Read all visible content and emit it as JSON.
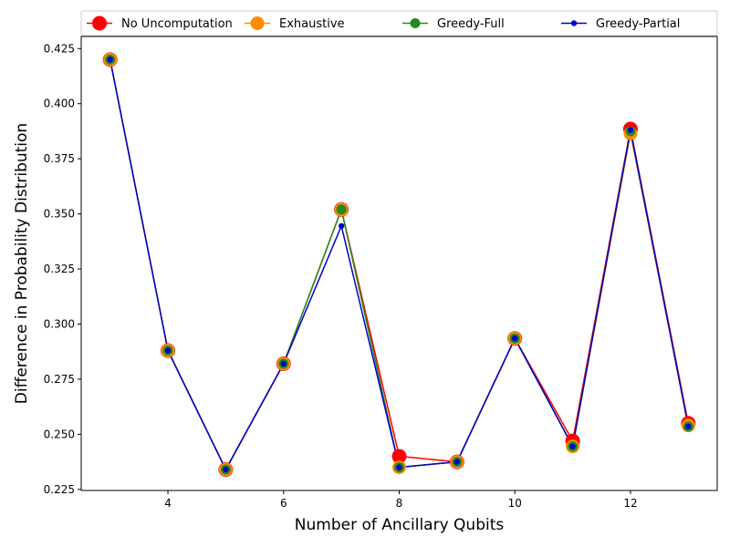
{
  "chart_data": {
    "type": "line",
    "xlabel": "Number of Ancillary Qubits",
    "ylabel": "Difference in Probability Distribution",
    "x": [
      3,
      4,
      5,
      6,
      7,
      8,
      9,
      10,
      11,
      12,
      13
    ],
    "xlim": [
      2.5,
      13.5
    ],
    "ylim": [
      0.2245,
      0.4305
    ],
    "xticks": [
      4,
      6,
      8,
      10,
      12
    ],
    "yticks": [
      0.225,
      0.25,
      0.275,
      0.3,
      0.325,
      0.35,
      0.375,
      0.4,
      0.425
    ],
    "ytick_labels": [
      "0.225",
      "0.250",
      "0.275",
      "0.300",
      "0.325",
      "0.350",
      "0.375",
      "0.400",
      "0.425"
    ],
    "grid": false,
    "legend_position": "top",
    "series": [
      {
        "name": "No Uncomputation",
        "color": "#ff0000",
        "values": [
          0.42,
          0.288,
          0.234,
          0.282,
          0.352,
          0.24,
          0.2375,
          0.2935,
          0.247,
          0.3885,
          0.255
        ]
      },
      {
        "name": "Exhaustive",
        "color": "#ff8c00",
        "values": [
          0.42,
          0.288,
          0.234,
          0.282,
          0.352,
          0.235,
          0.2375,
          0.2935,
          0.2445,
          0.3865,
          0.254
        ]
      },
      {
        "name": "Greedy-Full",
        "color": "#228b22",
        "values": [
          0.42,
          0.288,
          0.234,
          0.282,
          0.352,
          0.235,
          0.2375,
          0.2935,
          0.2445,
          0.3875,
          0.2535
        ]
      },
      {
        "name": "Greedy-Partial",
        "color": "#0000cd",
        "values": [
          0.42,
          0.288,
          0.234,
          0.282,
          0.3445,
          0.235,
          0.2375,
          0.2935,
          0.2445,
          0.388,
          0.2535
        ]
      }
    ]
  }
}
